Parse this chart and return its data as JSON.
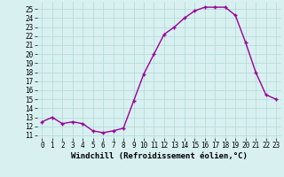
{
  "x": [
    0,
    1,
    2,
    3,
    4,
    5,
    6,
    7,
    8,
    9,
    10,
    11,
    12,
    13,
    14,
    15,
    16,
    17,
    18,
    19,
    20,
    21,
    22,
    23
  ],
  "y": [
    12.5,
    13.0,
    12.3,
    12.5,
    12.3,
    11.5,
    11.3,
    11.5,
    11.8,
    14.8,
    17.8,
    20.0,
    22.2,
    23.0,
    24.0,
    24.8,
    25.2,
    25.2,
    25.2,
    24.3,
    21.3,
    18.0,
    15.5,
    15.0
  ],
  "line_color": "#990099",
  "marker": "+",
  "markersize": 3,
  "linewidth": 1.0,
  "markeredgewidth": 1.0,
  "xlabel": "Windchill (Refroidissement éolien,°C)",
  "xlabel_fontsize": 6.5,
  "ylabel_ticks": [
    11,
    12,
    13,
    14,
    15,
    16,
    17,
    18,
    19,
    20,
    21,
    22,
    23,
    24,
    25
  ],
  "xlim": [
    -0.5,
    23.5
  ],
  "ylim": [
    10.7,
    25.8
  ],
  "background_color": "#d8f0f0",
  "grid_color": "#b0d8d8",
  "tick_fontsize": 5.5
}
